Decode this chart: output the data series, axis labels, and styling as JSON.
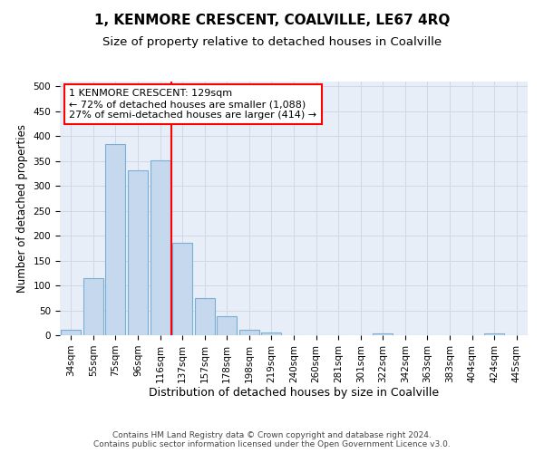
{
  "title": "1, KENMORE CRESCENT, COALVILLE, LE67 4RQ",
  "subtitle": "Size of property relative to detached houses in Coalville",
  "xlabel": "Distribution of detached houses by size in Coalville",
  "ylabel": "Number of detached properties",
  "categories": [
    "34sqm",
    "55sqm",
    "75sqm",
    "96sqm",
    "116sqm",
    "137sqm",
    "157sqm",
    "178sqm",
    "198sqm",
    "219sqm",
    "240sqm",
    "260sqm",
    "281sqm",
    "301sqm",
    "322sqm",
    "342sqm",
    "363sqm",
    "383sqm",
    "404sqm",
    "424sqm",
    "445sqm"
  ],
  "values": [
    11,
    115,
    385,
    332,
    352,
    186,
    75,
    38,
    11,
    6,
    0,
    0,
    0,
    0,
    4,
    0,
    0,
    0,
    0,
    3,
    0
  ],
  "bar_color": "#c5d8ee",
  "bar_edge_color": "#7aafd4",
  "vline_x_index": 5,
  "vline_color": "red",
  "annotation_line1": "1 KENMORE CRESCENT: 129sqm",
  "annotation_line2": "← 72% of detached houses are smaller (1,088)",
  "annotation_line3": "27% of semi-detached houses are larger (414) →",
  "annotation_box_color": "white",
  "annotation_box_edge_color": "red",
  "ylim": [
    0,
    510
  ],
  "yticks": [
    0,
    50,
    100,
    150,
    200,
    250,
    300,
    350,
    400,
    450,
    500
  ],
  "grid_color": "#d0d8e8",
  "bg_color": "#e8eef8",
  "footer": "Contains HM Land Registry data © Crown copyright and database right 2024.\nContains public sector information licensed under the Open Government Licence v3.0.",
  "title_fontsize": 11,
  "subtitle_fontsize": 9.5,
  "xlabel_fontsize": 9,
  "ylabel_fontsize": 8.5,
  "tick_fontsize": 7.5,
  "annotation_fontsize": 8,
  "footer_fontsize": 6.5
}
